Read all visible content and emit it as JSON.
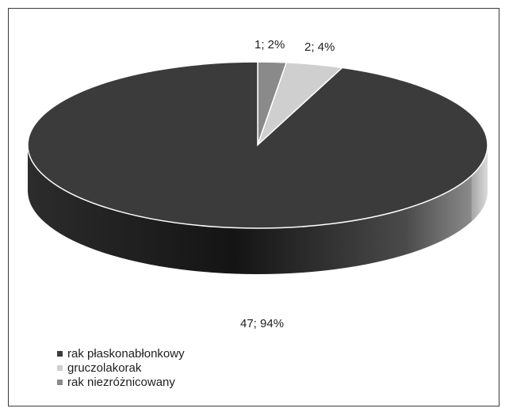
{
  "chart_data": {
    "type": "pie",
    "style": "3d",
    "categories": [
      "rak płaskonabłonkowy",
      "gruczolakorak",
      "rak niezróżnicowany"
    ],
    "values": [
      47,
      2,
      1
    ],
    "percentages": [
      94,
      4,
      2
    ],
    "data_labels": [
      "47; 94%",
      "2; 4%",
      "1; 2%"
    ],
    "colors": [
      "#3b3b3b",
      "#cfcfcf",
      "#8a8a8a"
    ],
    "legend_position": "bottom-left"
  }
}
